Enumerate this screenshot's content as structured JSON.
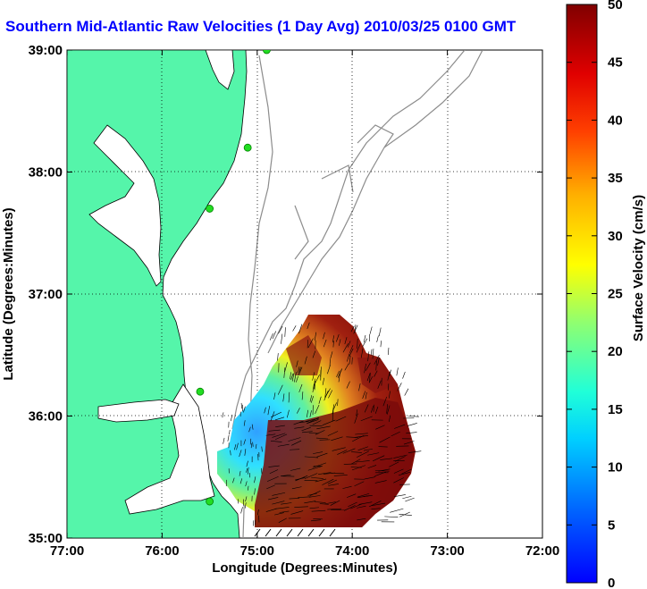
{
  "title": "Southern Mid-Atlantic Raw Velocities (1 Day Avg) 2010/03/25 0100 GMT",
  "axes": {
    "xlabel": "Longitude (Degrees:Minutes)",
    "ylabel": "Latitude (Degrees:Minutes)",
    "x_ticks": [
      {
        "value": -77,
        "label": "77:00"
      },
      {
        "value": -76,
        "label": "76:00"
      },
      {
        "value": -75,
        "label": "75:00"
      },
      {
        "value": -74,
        "label": "74:00"
      },
      {
        "value": -73,
        "label": "73:00"
      },
      {
        "value": -72,
        "label": "72:00"
      }
    ],
    "y_ticks": [
      {
        "value": 35,
        "label": "35:00"
      },
      {
        "value": 36,
        "label": "36:00"
      },
      {
        "value": 37,
        "label": "37:00"
      },
      {
        "value": 38,
        "label": "38:00"
      },
      {
        "value": 39,
        "label": "39:00"
      }
    ],
    "grid": "dotted",
    "xlim": [
      -77,
      -72
    ],
    "ylim": [
      35,
      39
    ]
  },
  "colorbar": {
    "label": "Surface Velocity (cm/s)",
    "ticks": [
      "0",
      "5",
      "10",
      "15",
      "20",
      "25",
      "30",
      "35",
      "40",
      "45",
      "50"
    ],
    "range": [
      0,
      50
    ]
  },
  "colors": {
    "land": "#55f5aa",
    "bathymetry": "#8c8c8c",
    "coast": "#000000",
    "stations": "#22dd22",
    "title": "#0000ff"
  },
  "stations": [
    {
      "lon": -74.9,
      "lat": 39.0
    },
    {
      "lon": -75.1,
      "lat": 38.2
    },
    {
      "lon": -75.5,
      "lat": 37.7
    },
    {
      "lon": -75.6,
      "lat": 36.2
    },
    {
      "lon": -75.5,
      "lat": 35.3
    }
  ],
  "velocity_field": {
    "description_units": "cm/s",
    "regions": [
      {
        "name": "slow-southwest",
        "speed_cm_s": 10
      },
      {
        "name": "moderate-center",
        "speed_cm_s": 20
      },
      {
        "name": "fast-east",
        "speed_cm_s": 45
      }
    ]
  }
}
